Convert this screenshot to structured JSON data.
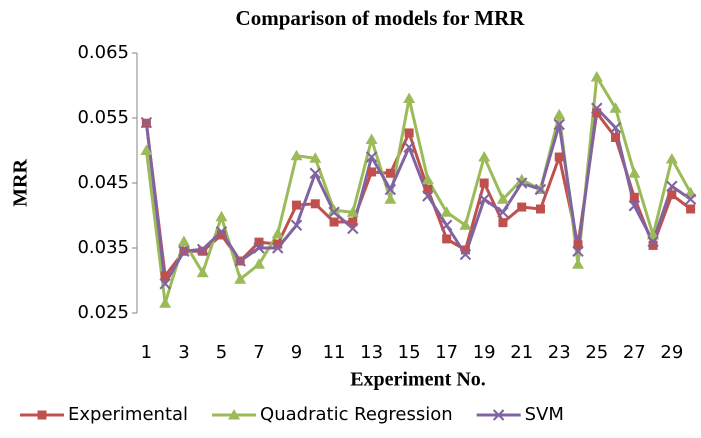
{
  "chart_data": {
    "type": "line",
    "title": "Comparison of models for MRR",
    "x_label": "Experiment No.",
    "y_label": "MRR",
    "categories": [
      1,
      null,
      3,
      null,
      5,
      null,
      7,
      null,
      9,
      null,
      11,
      null,
      13,
      null,
      15,
      null,
      17,
      null,
      19,
      null,
      21,
      null,
      23,
      null,
      25,
      null,
      27,
      null,
      29,
      null
    ],
    "ylim": [
      0.025,
      0.065
    ],
    "yticks": [
      0.025,
      0.035,
      0.045,
      0.055,
      0.065
    ],
    "grid": false,
    "legend": "bottom",
    "series": [
      {
        "name": "Experimental",
        "color": "#c0504d",
        "marker": "square",
        "values": [
          0.0542,
          0.0307,
          0.0345,
          0.0345,
          0.037,
          0.033,
          0.0359,
          0.0356,
          0.0416,
          0.0418,
          0.039,
          0.039,
          0.0467,
          0.0465,
          0.0527,
          0.044,
          0.0364,
          0.0347,
          0.045,
          0.0389,
          0.0413,
          0.041,
          0.049,
          0.0355,
          0.0558,
          0.052,
          0.0428,
          0.0354,
          0.0432,
          0.041
        ]
      },
      {
        "name": "Quadratic Regression",
        "color": "#9bbb59",
        "marker": "triangle",
        "values": [
          0.05,
          0.0265,
          0.036,
          0.0312,
          0.0398,
          0.0302,
          0.0325,
          0.0372,
          0.0492,
          0.0488,
          0.0408,
          0.0405,
          0.0517,
          0.0425,
          0.058,
          0.0455,
          0.0405,
          0.0385,
          0.049,
          0.0425,
          0.0455,
          0.044,
          0.0555,
          0.0325,
          0.0613,
          0.0565,
          0.0465,
          0.037,
          0.0487,
          0.0435
        ]
      },
      {
        "name": "SVM",
        "color": "#8064a2",
        "marker": "x",
        "values": [
          0.0543,
          0.0295,
          0.0345,
          0.0348,
          0.0375,
          0.033,
          0.035,
          0.035,
          0.0385,
          0.0465,
          0.0405,
          0.038,
          0.049,
          0.044,
          0.0505,
          0.043,
          0.0385,
          0.034,
          0.0425,
          0.0405,
          0.045,
          0.044,
          0.054,
          0.0345,
          0.0565,
          0.0535,
          0.0415,
          0.036,
          0.0445,
          0.0425
        ]
      }
    ]
  }
}
